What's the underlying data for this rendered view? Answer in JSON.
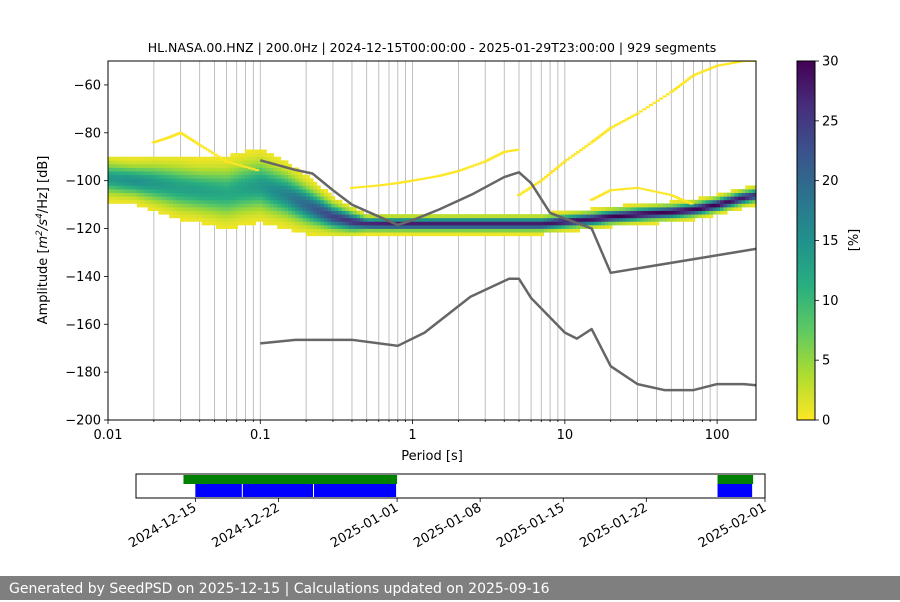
{
  "chart_data": [
    {
      "type": "heatmap",
      "title": "HL.NASA.00.HNZ | 200.0Hz | 2024-12-15T00:00:00 - 2025-01-29T23:00:00 | 929 segments",
      "xlabel": "Period [s]",
      "ylabel_parts": [
        "Amplitude [",
        "m",
        "2",
        "/s",
        "4",
        "/Hz] [dB]"
      ],
      "x_scale": "log",
      "xlim": [
        0.01,
        180
      ],
      "ylim": [
        -200,
        -50
      ],
      "x_ticks": [
        {
          "value": 0.01,
          "label": "0.01"
        },
        {
          "value": 0.1,
          "label": "0.1"
        },
        {
          "value": 1,
          "label": "1"
        },
        {
          "value": 10,
          "label": "10"
        },
        {
          "value": 100,
          "label": "100"
        }
      ],
      "y_ticks": [
        {
          "value": -200,
          "label": "−200"
        },
        {
          "value": -180,
          "label": "−180"
        },
        {
          "value": -160,
          "label": "−160"
        },
        {
          "value": -140,
          "label": "−140"
        },
        {
          "value": -120,
          "label": "−120"
        },
        {
          "value": -100,
          "label": "−100"
        },
        {
          "value": -80,
          "label": "−80"
        },
        {
          "value": -60,
          "label": "−60"
        }
      ],
      "grid": "vertical",
      "colormap": "viridis (reversed)",
      "colorbar": {
        "label": "[%]",
        "range": [
          0,
          30
        ],
        "ticks": [
          {
            "value": 0,
            "label": "0"
          },
          {
            "value": 5,
            "label": "5"
          },
          {
            "value": 10,
            "label": "10"
          },
          {
            "value": 15,
            "label": "15"
          },
          {
            "value": 20,
            "label": "20"
          },
          {
            "value": 25,
            "label": "25"
          },
          {
            "value": 30,
            "label": "30"
          }
        ]
      },
      "density_ridge": {
        "period": [
          0.01,
          0.015,
          0.02,
          0.03,
          0.04,
          0.06,
          0.08,
          0.1,
          0.15,
          0.2,
          0.3,
          0.4,
          0.5,
          0.7,
          1,
          1.5,
          2,
          3,
          5,
          7,
          10,
          15,
          20,
          30,
          50,
          70,
          100,
          150,
          180
        ],
        "amplitude_db": [
          -99,
          -100,
          -101,
          -103,
          -104,
          -105,
          -103,
          -102,
          -106,
          -110,
          -115,
          -117,
          -118,
          -118,
          -118,
          -118,
          -118,
          -118,
          -118,
          -118,
          -117,
          -116,
          -115,
          -114,
          -113,
          -112,
          -110,
          -107,
          -106
        ],
        "spread_db": [
          5,
          5,
          6,
          7,
          7,
          8,
          8,
          8,
          7,
          6,
          4,
          3,
          2,
          2,
          2,
          2,
          2,
          2,
          2,
          2,
          2,
          2,
          2,
          2,
          2,
          2,
          2,
          2,
          2
        ],
        "max_percent": [
          14,
          15,
          14,
          13,
          13,
          12,
          13,
          14,
          17,
          20,
          24,
          26,
          27,
          28,
          28,
          28,
          28,
          28,
          28,
          28,
          29,
          29,
          30,
          30,
          30,
          30,
          30,
          28,
          26
        ],
        "low_density_outliers": [
          {
            "period": [
              0.02,
              0.025,
              0.03,
              0.04,
              0.06,
              0.1
            ],
            "amplitude_db": [
              -84,
              -82,
              -80,
              -85,
              -92,
              -96
            ]
          },
          {
            "period": [
              0.4,
              0.6,
              0.8,
              1,
              1.5,
              2,
              3,
              4,
              5
            ],
            "amplitude_db": [
              -103,
              -102,
              -101,
              -100,
              -98,
              -96,
              -92,
              -88,
              -87
            ]
          },
          {
            "period": [
              5,
              7,
              10,
              15,
              20,
              30,
              50,
              70,
              100,
              150,
              180
            ],
            "amplitude_db": [
              -106,
              -100,
              -92,
              -84,
              -78,
              -72,
              -63,
              -56,
              -52,
              -50,
              -50
            ]
          },
          {
            "period": [
              15,
              20,
              30,
              50,
              70
            ],
            "amplitude_db": [
              -108,
              -104,
              -103,
              -106,
              -110
            ]
          }
        ]
      },
      "reference_curves": [
        {
          "period": [
            0.1,
            0.17,
            0.22,
            0.3,
            0.4,
            0.6,
            0.8,
            1.0,
            1.5,
            2.5,
            4,
            5,
            6,
            8,
            15,
            20,
            180
          ],
          "amplitude_db": [
            -91.5,
            -95.5,
            -97,
            -104,
            -110,
            -115,
            -118.5,
            -116.5,
            -112,
            -105.5,
            -98.5,
            -96.5,
            -101,
            -113.5,
            -120,
            -138.5,
            -128.5
          ]
        },
        {
          "period": [
            0.1,
            0.17,
            0.4,
            0.8,
            1.2,
            2.4,
            4.3,
            5.0,
            6.0,
            10,
            12,
            15,
            20,
            30,
            45,
            70,
            100,
            150,
            180
          ],
          "amplitude_db": [
            -168,
            -166.5,
            -166.5,
            -169,
            -163.5,
            -148.5,
            -141,
            -141,
            -149,
            -163.5,
            -166,
            -162,
            -177.5,
            -185,
            -187.5,
            -187.5,
            -185,
            -185,
            -185.5
          ]
        }
      ]
    },
    {
      "type": "timeline",
      "x_range": [
        "2024-12-10",
        "2025-02-01"
      ],
      "x_ticks": [
        "2024-12-15",
        "2024-12-22",
        "2025-01-01",
        "2025-01-08",
        "2025-01-15",
        "2025-01-22",
        "2025-02-01"
      ],
      "colors": {
        "top_band": "#008000",
        "bottom_band": "#0000ff"
      },
      "top_band_intervals": [
        [
          "2024-12-14",
          "2025-01-01"
        ],
        [
          "2025-01-28",
          "2025-01-31"
        ]
      ],
      "bottom_band_intervals": [
        [
          "2024-12-15",
          "2024-12-19"
        ],
        [
          "2024-12-19",
          "2024-12-25"
        ],
        [
          "2024-12-25",
          "2025-01-01"
        ],
        [
          "2025-01-28",
          "2025-01-31"
        ]
      ]
    }
  ],
  "footer": {
    "text": "Generated by SeedPSD on 2025-12-15 | Calculations updated on 2025-09-16"
  }
}
